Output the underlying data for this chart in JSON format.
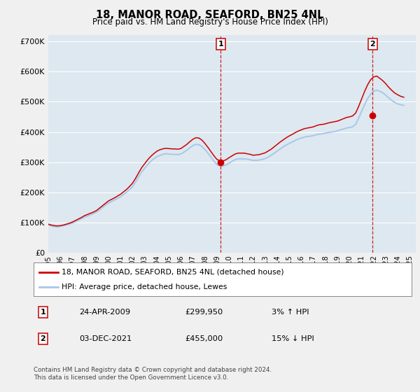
{
  "title": "18, MANOR ROAD, SEAFORD, BN25 4NL",
  "subtitle": "Price paid vs. HM Land Registry's House Price Index (HPI)",
  "background_color": "#f0f0f0",
  "plot_bg_color": "#dde8f0",
  "grid_color": "#ffffff",
  "line1_color": "#cc0000",
  "line2_color": "#a8c8e8",
  "line1_label": "18, MANOR ROAD, SEAFORD, BN25 4NL (detached house)",
  "line2_label": "HPI: Average price, detached house, Lewes",
  "sale1_x": 2009.31,
  "sale1_y": 299950,
  "sale2_x": 2021.92,
  "sale2_y": 455000,
  "sale1_date": "24-APR-2009",
  "sale1_price": "£299,950",
  "sale1_hpi": "3% ↑ HPI",
  "sale2_date": "03-DEC-2021",
  "sale2_price": "£455,000",
  "sale2_hpi": "15% ↓ HPI",
  "xmin": 1995,
  "xmax": 2025.5,
  "ymin": 0,
  "ymax": 720000,
  "yticks": [
    0,
    100000,
    200000,
    300000,
    400000,
    500000,
    600000,
    700000
  ],
  "ytick_labels": [
    "£0",
    "£100K",
    "£200K",
    "£300K",
    "£400K",
    "£500K",
    "£600K",
    "£700K"
  ],
  "footer": "Contains HM Land Registry data © Crown copyright and database right 2024.\nThis data is licensed under the Open Government Licence v3.0.",
  "hpi_data_x": [
    1995.0,
    1995.25,
    1995.5,
    1995.75,
    1996.0,
    1996.25,
    1996.5,
    1996.75,
    1997.0,
    1997.25,
    1997.5,
    1997.75,
    1998.0,
    1998.25,
    1998.5,
    1998.75,
    1999.0,
    1999.25,
    1999.5,
    1999.75,
    2000.0,
    2000.25,
    2000.5,
    2000.75,
    2001.0,
    2001.25,
    2001.5,
    2001.75,
    2002.0,
    2002.25,
    2002.5,
    2002.75,
    2003.0,
    2003.25,
    2003.5,
    2003.75,
    2004.0,
    2004.25,
    2004.5,
    2004.75,
    2005.0,
    2005.25,
    2005.5,
    2005.75,
    2006.0,
    2006.25,
    2006.5,
    2006.75,
    2007.0,
    2007.25,
    2007.5,
    2007.75,
    2008.0,
    2008.25,
    2008.5,
    2008.75,
    2009.0,
    2009.25,
    2009.5,
    2009.75,
    2010.0,
    2010.25,
    2010.5,
    2010.75,
    2011.0,
    2011.25,
    2011.5,
    2011.75,
    2012.0,
    2012.25,
    2012.5,
    2012.75,
    2013.0,
    2013.25,
    2013.5,
    2013.75,
    2014.0,
    2014.25,
    2014.5,
    2014.75,
    2015.0,
    2015.25,
    2015.5,
    2015.75,
    2016.0,
    2016.25,
    2016.5,
    2016.75,
    2017.0,
    2017.25,
    2017.5,
    2017.75,
    2018.0,
    2018.25,
    2018.5,
    2018.75,
    2019.0,
    2019.25,
    2019.5,
    2019.75,
    2020.0,
    2020.25,
    2020.5,
    2020.75,
    2021.0,
    2021.25,
    2021.5,
    2021.75,
    2022.0,
    2022.25,
    2022.5,
    2022.75,
    2023.0,
    2023.25,
    2023.5,
    2023.75,
    2024.0,
    2024.25,
    2024.5
  ],
  "hpi_data_y": [
    92000,
    89000,
    87000,
    86000,
    88000,
    90000,
    92000,
    95000,
    99000,
    103000,
    108000,
    113000,
    118000,
    122000,
    126000,
    130000,
    135000,
    142000,
    150000,
    158000,
    165000,
    170000,
    175000,
    180000,
    186000,
    193000,
    201000,
    210000,
    220000,
    235000,
    252000,
    268000,
    280000,
    292000,
    303000,
    311000,
    318000,
    322000,
    326000,
    328000,
    327000,
    326000,
    326000,
    325000,
    327000,
    333000,
    340000,
    348000,
    355000,
    359000,
    358000,
    352000,
    342000,
    330000,
    317000,
    303000,
    292000,
    288000,
    287000,
    291000,
    297000,
    303000,
    308000,
    311000,
    311000,
    311000,
    310000,
    308000,
    306000,
    306000,
    307000,
    309000,
    312000,
    317000,
    323000,
    330000,
    337000,
    344000,
    351000,
    357000,
    362000,
    367000,
    372000,
    377000,
    380000,
    383000,
    385000,
    386000,
    388000,
    391000,
    393000,
    394000,
    396000,
    398000,
    400000,
    401000,
    404000,
    407000,
    410000,
    413000,
    415000,
    417000,
    425000,
    445000,
    468000,
    490000,
    510000,
    525000,
    535000,
    538000,
    535000,
    530000,
    522000,
    513000,
    505000,
    498000,
    493000,
    490000,
    488000
  ],
  "prop_data_x": [
    1995.0,
    1995.25,
    1995.5,
    1995.75,
    1996.0,
    1996.25,
    1996.5,
    1996.75,
    1997.0,
    1997.25,
    1997.5,
    1997.75,
    1998.0,
    1998.25,
    1998.5,
    1998.75,
    1999.0,
    1999.25,
    1999.5,
    1999.75,
    2000.0,
    2000.25,
    2000.5,
    2000.75,
    2001.0,
    2001.25,
    2001.5,
    2001.75,
    2002.0,
    2002.25,
    2002.5,
    2002.75,
    2003.0,
    2003.25,
    2003.5,
    2003.75,
    2004.0,
    2004.25,
    2004.5,
    2004.75,
    2005.0,
    2005.25,
    2005.5,
    2005.75,
    2006.0,
    2006.25,
    2006.5,
    2006.75,
    2007.0,
    2007.25,
    2007.5,
    2007.75,
    2008.0,
    2008.25,
    2008.5,
    2008.75,
    2009.0,
    2009.25,
    2009.5,
    2009.75,
    2010.0,
    2010.25,
    2010.5,
    2010.75,
    2011.0,
    2011.25,
    2011.5,
    2011.75,
    2012.0,
    2012.25,
    2012.5,
    2012.75,
    2013.0,
    2013.25,
    2013.5,
    2013.75,
    2014.0,
    2014.25,
    2014.5,
    2014.75,
    2015.0,
    2015.25,
    2015.5,
    2015.75,
    2016.0,
    2016.25,
    2016.5,
    2016.75,
    2017.0,
    2017.25,
    2017.5,
    2017.75,
    2018.0,
    2018.25,
    2018.5,
    2018.75,
    2019.0,
    2019.25,
    2019.5,
    2019.75,
    2020.0,
    2020.25,
    2020.5,
    2020.75,
    2021.0,
    2021.25,
    2021.5,
    2021.75,
    2022.0,
    2022.25,
    2022.5,
    2022.75,
    2023.0,
    2023.25,
    2023.5,
    2023.75,
    2024.0,
    2024.25,
    2024.5
  ],
  "prop_data_y": [
    95000,
    92000,
    90000,
    89000,
    90000,
    92000,
    95000,
    98000,
    102000,
    107000,
    112000,
    117000,
    123000,
    127000,
    131000,
    135000,
    140000,
    148000,
    156000,
    164000,
    172000,
    177000,
    182000,
    188000,
    194000,
    202000,
    210000,
    220000,
    231000,
    247000,
    265000,
    282000,
    295000,
    308000,
    319000,
    328000,
    336000,
    341000,
    344000,
    346000,
    345000,
    344000,
    344000,
    343000,
    345000,
    352000,
    359000,
    368000,
    376000,
    381000,
    380000,
    373000,
    362000,
    349000,
    335000,
    321000,
    309000,
    305000,
    304000,
    308000,
    315000,
    321000,
    327000,
    330000,
    330000,
    330000,
    328000,
    326000,
    323000,
    324000,
    325000,
    328000,
    331000,
    337000,
    343000,
    351000,
    359000,
    367000,
    374000,
    381000,
    387000,
    392000,
    398000,
    403000,
    407000,
    411000,
    413000,
    415000,
    417000,
    421000,
    424000,
    425000,
    427000,
    430000,
    432000,
    434000,
    436000,
    440000,
    444000,
    448000,
    450000,
    453000,
    462000,
    484000,
    509000,
    534000,
    556000,
    573000,
    582000,
    585000,
    578000,
    570000,
    560000,
    548000,
    538000,
    529000,
    523000,
    518000,
    515000
  ]
}
